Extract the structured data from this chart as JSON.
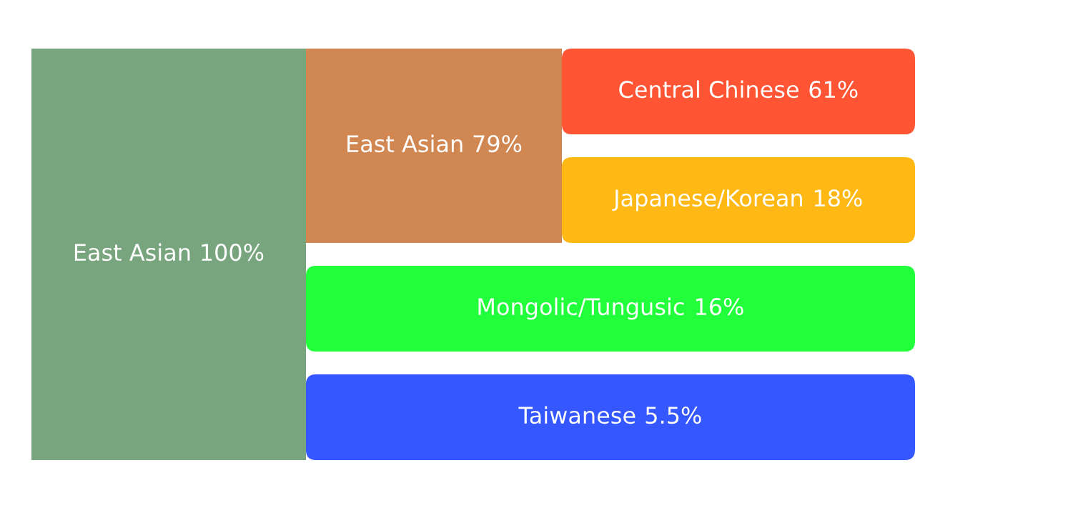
{
  "chart_data": {
    "type": "other",
    "categories": [
      "East Asian",
      "East Asian",
      "Central Chinese",
      "Japanese/Korean",
      "Mongolic/Tungusic",
      "Taiwanese"
    ],
    "values": [
      100,
      79,
      61,
      18,
      16,
      5.5
    ],
    "value_labels": [
      "100%",
      "79%",
      "61%",
      "18%",
      "16%",
      "5.5%"
    ],
    "colors": [
      "#79a57e",
      "#d08752",
      "#ff5535",
      "#ffb814",
      "#22ff3b",
      "#3557ff"
    ]
  }
}
